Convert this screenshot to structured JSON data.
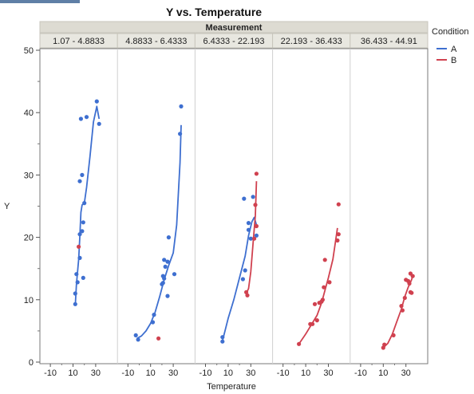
{
  "window": {
    "top_strip_color": "#5f7fa6"
  },
  "chart_data": {
    "type": "scatter",
    "title": "Y vs. Temperature",
    "group_title": "Measurement",
    "xlabel": "Temperature",
    "ylabel": "Y",
    "ylim": [
      0,
      50
    ],
    "yticks": [
      0,
      10,
      20,
      30,
      40,
      50
    ],
    "xlim": [
      -15,
      45
    ],
    "xticks": [
      -10,
      10,
      30
    ],
    "grid": false,
    "legend": {
      "title": "Condition",
      "placement": "right",
      "items": [
        {
          "name": "A",
          "color": "#3e6fd0"
        },
        {
          "name": "B",
          "color": "#d0414f"
        }
      ]
    },
    "panels": [
      {
        "label": "1.07 - 4.8833",
        "series": [
          {
            "name": "A",
            "color": "#3e6fd0",
            "points": [
              [
                12,
                9.3
              ],
              [
                12,
                11
              ],
              [
                13,
                14.1
              ],
              [
                14,
                12.8
              ],
              [
                16,
                16.7
              ],
              [
                16,
                20.5
              ],
              [
                16,
                29
              ],
              [
                17,
                39
              ],
              [
                18,
                21
              ],
              [
                18,
                30
              ],
              [
                19,
                22.4
              ],
              [
                20,
                25.5
              ],
              [
                19,
                13.5
              ],
              [
                22,
                39.3
              ],
              [
                31,
                41.8
              ],
              [
                33,
                38.2
              ]
            ],
            "fit": [
              [
                12,
                9
              ],
              [
                13,
                12.5
              ],
              [
                15,
                16.5
              ],
              [
                16,
                20
              ],
              [
                17,
                24
              ],
              [
                18,
                25.2
              ],
              [
                20,
                25.5
              ],
              [
                22,
                28
              ],
              [
                25,
                33
              ],
              [
                28,
                38.5
              ],
              [
                31,
                41
              ],
              [
                33,
                39
              ]
            ]
          },
          {
            "name": "B",
            "color": "#d0414f",
            "points": [
              [
                15,
                18.5
              ]
            ],
            "fit": []
          }
        ]
      },
      {
        "label": "4.8833 - 6.4333",
        "series": [
          {
            "name": "A",
            "color": "#3e6fd0",
            "points": [
              [
                -3,
                4.3
              ],
              [
                -1,
                3.6
              ],
              [
                12,
                6.4
              ],
              [
                13,
                7.6
              ],
              [
                20,
                12.5
              ],
              [
                21,
                12.7
              ],
              [
                21,
                13.8
              ],
              [
                22,
                16.4
              ],
              [
                23,
                15.3
              ],
              [
                22,
                13.4
              ],
              [
                25,
                16.1
              ],
              [
                25,
                10.6
              ],
              [
                26,
                20
              ],
              [
                31,
                14.1
              ],
              [
                36,
                36.6
              ],
              [
                37,
                41
              ]
            ],
            "fit": [
              [
                -2,
                3.8
              ],
              [
                2,
                4.2
              ],
              [
                6,
                5
              ],
              [
                10,
                6.2
              ],
              [
                14,
                8
              ],
              [
                18,
                10.5
              ],
              [
                22,
                13.2
              ],
              [
                26,
                15.5
              ],
              [
                30,
                17.5
              ],
              [
                33,
                22
              ],
              [
                36,
                32
              ],
              [
                37,
                38
              ]
            ]
          },
          {
            "name": "B",
            "color": "#d0414f",
            "points": [
              [
                17,
                3.8
              ]
            ],
            "fit": []
          }
        ]
      },
      {
        "label": "6.4333 - 22.193",
        "series": [
          {
            "name": "A",
            "color": "#3e6fd0",
            "points": [
              [
                5,
                3.3
              ],
              [
                5,
                4
              ],
              [
                23,
                13.3
              ],
              [
                24,
                26.2
              ],
              [
                25,
                14.7
              ],
              [
                28,
                22.3
              ],
              [
                28,
                21.2
              ],
              [
                30,
                19.8
              ],
              [
                32,
                26.5
              ],
              [
                35,
                20.3
              ]
            ],
            "fit": [
              [
                5,
                3.4
              ],
              [
                10,
                7
              ],
              [
                15,
                10
              ],
              [
                20,
                13.5
              ],
              [
                25,
                17
              ],
              [
                28,
                20.3
              ],
              [
                31,
                22.5
              ],
              [
                33,
                23.2
              ],
              [
                35,
                22
              ]
            ]
          },
          {
            "name": "B",
            "color": "#d0414f",
            "points": [
              [
                26,
                11.2
              ],
              [
                27,
                10.7
              ],
              [
                33,
                19.8
              ],
              [
                34,
                25.2
              ],
              [
                35,
                21.8
              ],
              [
                35,
                30.2
              ]
            ],
            "fit": [
              [
                26,
                11
              ],
              [
                28,
                11.8
              ],
              [
                30,
                14.5
              ],
              [
                32,
                19
              ],
              [
                34,
                23.5
              ],
              [
                35,
                29
              ]
            ]
          }
        ]
      },
      {
        "label": "22.193 - 36.433",
        "series": [
          {
            "name": "B",
            "color": "#d0414f",
            "points": [
              [
                4,
                2.9
              ],
              [
                14,
                6.1
              ],
              [
                16,
                6.1
              ],
              [
                18,
                9.3
              ],
              [
                20,
                6.7
              ],
              [
                22,
                9.5
              ],
              [
                24,
                9.7
              ],
              [
                25,
                10
              ],
              [
                26,
                12
              ],
              [
                27,
                16.4
              ],
              [
                31,
                12.8
              ],
              [
                38,
                19.5
              ],
              [
                39,
                25.3
              ],
              [
                39,
                20.5
              ]
            ],
            "fit": [
              [
                4,
                2.9
              ],
              [
                10,
                4.5
              ],
              [
                15,
                6
              ],
              [
                20,
                7.5
              ],
              [
                24,
                9.5
              ],
              [
                27,
                11.5
              ],
              [
                30,
                13.5
              ],
              [
                34,
                16.5
              ],
              [
                38,
                21.5
              ]
            ]
          }
        ]
      },
      {
        "label": "36.433 - 44.91",
        "series": [
          {
            "name": "B",
            "color": "#d0414f",
            "points": [
              [
                10,
                2.3
              ],
              [
                11,
                2.8
              ],
              [
                19,
                4.3
              ],
              [
                26,
                9
              ],
              [
                27,
                8.3
              ],
              [
                29,
                10.3
              ],
              [
                30,
                13.2
              ],
              [
                33,
                12.6
              ],
              [
                34,
                11.2
              ],
              [
                35,
                11.1
              ],
              [
                34,
                14.2
              ],
              [
                36,
                13.8
              ],
              [
                32,
                13
              ]
            ],
            "fit": [
              [
                10,
                2.3
              ],
              [
                14,
                3
              ],
              [
                18,
                4.5
              ],
              [
                22,
                6.5
              ],
              [
                26,
                8.5
              ],
              [
                29,
                10.5
              ],
              [
                32,
                12
              ],
              [
                35,
                13.2
              ],
              [
                36,
                13.9
              ]
            ]
          }
        ]
      }
    ]
  }
}
